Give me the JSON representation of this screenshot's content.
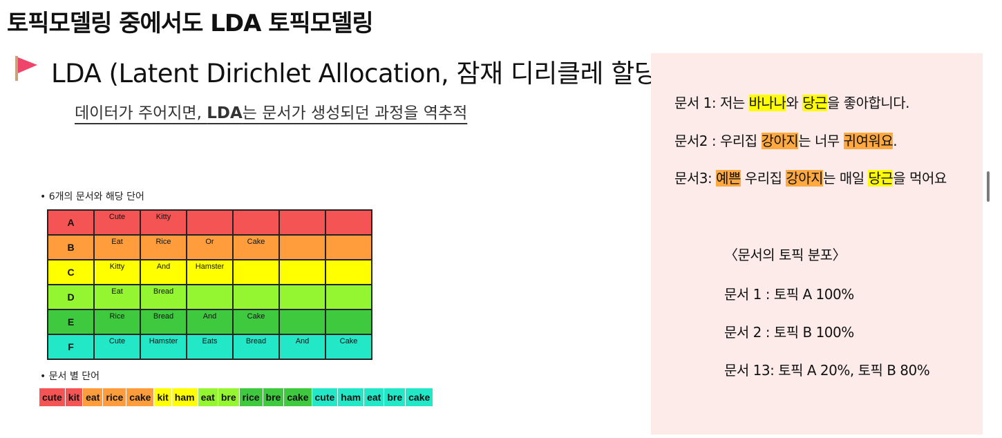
{
  "page": {
    "title": "토픽모델링 중에서도 LDA 토픽모델링",
    "heading": "LDA (Latent Dirichlet Allocation, 잠재 디리클레 할당)",
    "subheading_pre": "데이터가 주어지면, ",
    "subheading_bold": "LDA",
    "subheading_post": "는 문서가 생성되던 과정을 역추적"
  },
  "table_section": {
    "bullet": "•  6개의 문서와 해당 단어",
    "rows": [
      {
        "label": "A",
        "color": "#f55454",
        "words": [
          "Cute",
          "Kitty",
          "",
          "",
          "",
          ""
        ]
      },
      {
        "label": "B",
        "color": "#ff9d3c",
        "words": [
          "Eat",
          "Rice",
          "Or",
          "Cake",
          "",
          ""
        ]
      },
      {
        "label": "C",
        "color": "#ffff00",
        "words": [
          "Kitty",
          "And",
          "Hamster",
          "",
          "",
          ""
        ]
      },
      {
        "label": "D",
        "color": "#94f531",
        "words": [
          "Eat",
          "Bread",
          "",
          "",
          "",
          ""
        ]
      },
      {
        "label": "E",
        "color": "#3fc93f",
        "words": [
          "Rice",
          "Bread",
          "And",
          "Cake",
          "",
          ""
        ]
      },
      {
        "label": "F",
        "color": "#22e8c8",
        "words": [
          "Cute",
          "Hamster",
          "Eats",
          "Bread",
          "And",
          "Cake"
        ]
      }
    ]
  },
  "strip_section": {
    "bullet": "•  문서 별 단어",
    "cells": [
      {
        "text": "cute",
        "color": "#f55454"
      },
      {
        "text": "kit",
        "color": "#f55454"
      },
      {
        "text": "eat",
        "color": "#ff9d3c"
      },
      {
        "text": "rice",
        "color": "#ff9d3c"
      },
      {
        "text": "cake",
        "color": "#ff9d3c"
      },
      {
        "text": "kit",
        "color": "#ffff00"
      },
      {
        "text": "ham",
        "color": "#ffff00"
      },
      {
        "text": "eat",
        "color": "#94f531"
      },
      {
        "text": "bre",
        "color": "#94f531"
      },
      {
        "text": "rice",
        "color": "#3fc93f"
      },
      {
        "text": "bre",
        "color": "#3fc93f"
      },
      {
        "text": "cake",
        "color": "#3fc93f"
      },
      {
        "text": "cute",
        "color": "#22e8c8"
      },
      {
        "text": "ham",
        "color": "#22e8c8"
      },
      {
        "text": "eat",
        "color": "#22e8c8"
      },
      {
        "text": "bre",
        "color": "#22e8c8"
      },
      {
        "text": "cake",
        "color": "#22e8c8"
      }
    ]
  },
  "panel": {
    "doc_lines": [
      [
        {
          "t": "문서 1:  저는 "
        },
        {
          "t": "바나나",
          "hl": "y"
        },
        {
          "t": "와 "
        },
        {
          "t": "당근",
          "hl": "y"
        },
        {
          "t": "을 좋아합니다."
        }
      ],
      [
        {
          "t": "문서2 : 우리집 "
        },
        {
          "t": "강아지",
          "hl": "o"
        },
        {
          "t": "는 너무 "
        },
        {
          "t": "귀여워요",
          "hl": "o"
        },
        {
          "t": "."
        }
      ],
      [
        {
          "t": "문서3:  "
        },
        {
          "t": "예쁜",
          "hl": "o"
        },
        {
          "t": " 우리집 "
        },
        {
          "t": "강아지",
          "hl": "o"
        },
        {
          "t": "는 매일 "
        },
        {
          "t": "당근",
          "hl": "y"
        },
        {
          "t": "을 먹어요"
        }
      ]
    ],
    "dist_title": "〈문서의 토픽 분포〉",
    "dist_lines": [
      "문서 1 : 토픽 A 100%",
      "문서 2 : 토픽 B 100%",
      "문서 13: 토픽 A 20%, 토픽 B 80%"
    ]
  }
}
